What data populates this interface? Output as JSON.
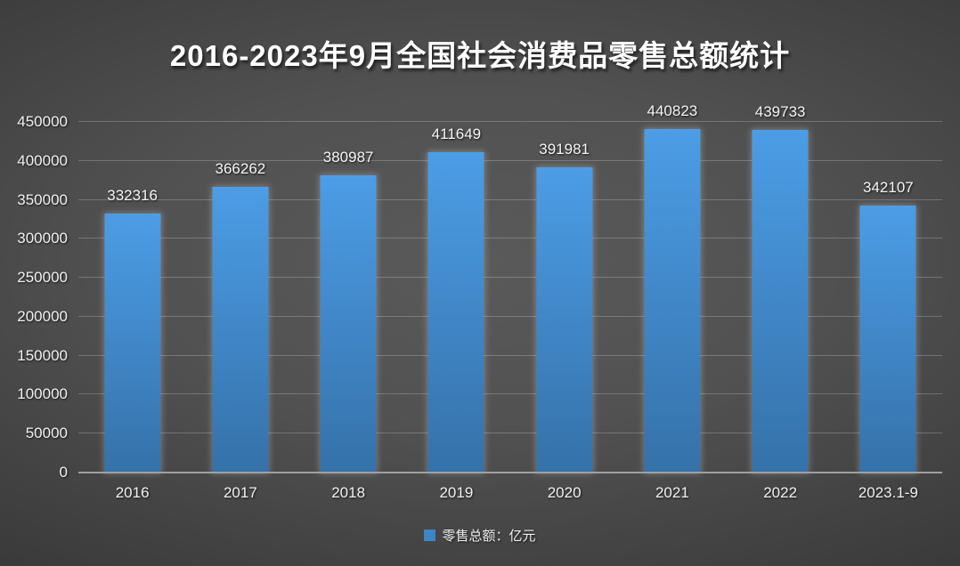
{
  "title": "2016-2023年9月全国社会消费品零售总额统计",
  "legend": {
    "label": "零售总额：亿元",
    "marker_color": "#3D85C6"
  },
  "colors": {
    "background_center": "#575757",
    "background_edge": "#2A2A2A",
    "bar_top": "#4C9DE6",
    "bar_bottom": "#3571A9",
    "text": "#F2F2F2",
    "gridline": "rgba(255,255,255,0.22)",
    "axis_line": "#A0A0A0"
  },
  "chart_data": {
    "type": "bar",
    "title": "2016-2023年9月全国社会消费品零售总额统计",
    "categories": [
      "2016",
      "2017",
      "2018",
      "2019",
      "2020",
      "2021",
      "2022",
      "2023.1-9"
    ],
    "values": [
      332316,
      366262,
      380987,
      411649,
      391981,
      440823,
      439733,
      342107
    ],
    "series_name": "零售总额：亿元",
    "xlabel": "",
    "ylabel": "",
    "ylim": [
      0,
      450000
    ],
    "yticks": [
      0,
      50000,
      100000,
      150000,
      200000,
      250000,
      300000,
      350000,
      400000,
      450000
    ],
    "grid": true,
    "data_labels": true,
    "legend_position": "bottom"
  }
}
